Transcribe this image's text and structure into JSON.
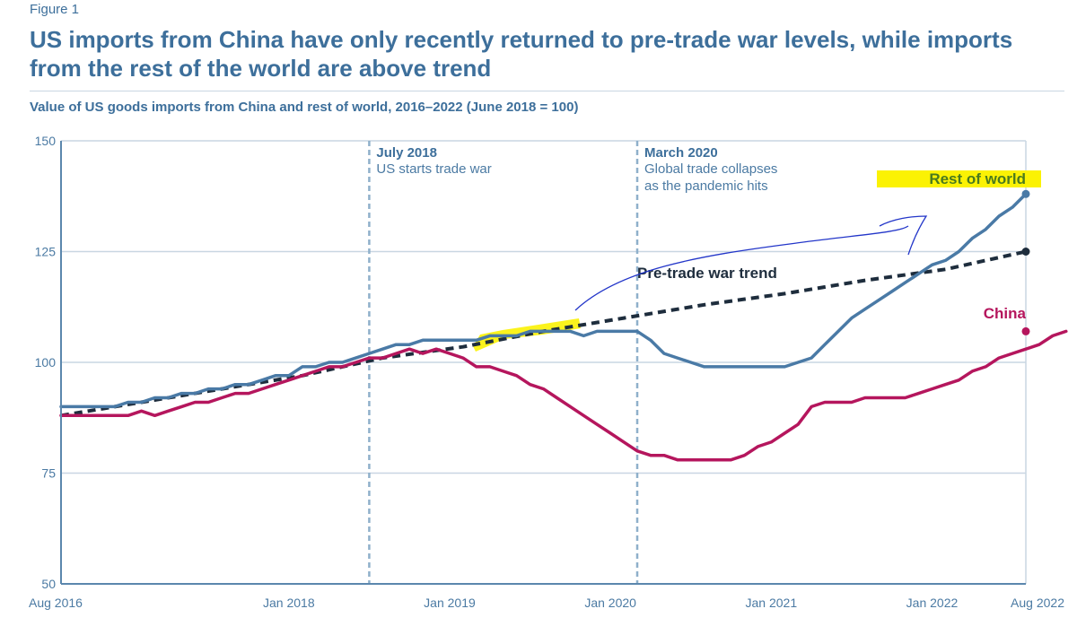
{
  "figure_label": "Figure 1",
  "title": "US imports from China have only recently returned to pre-trade war levels, while imports from the rest of the world are above trend",
  "subtitle": "Value of US goods imports from China and rest of world, 2016–2022 (June 2018 = 100)",
  "colors": {
    "china": "#b5165d",
    "rest_of_world": "#4a7aa6",
    "trend": "#1e2d3d",
    "axis": "#5b87ad",
    "grid": "#c9d6e2",
    "annotation_line": "#8fb0cb",
    "highlight": "#fbf204",
    "pen": "#2336c9"
  },
  "chart_data": {
    "type": "line",
    "title": "Value of US goods imports from China and rest of world, 2016–2022 (June 2018 = 100)",
    "xlabel": "",
    "ylabel": "",
    "xlim": [
      0,
      72
    ],
    "ylim": [
      50,
      150
    ],
    "yticks": [
      50,
      75,
      100,
      125,
      150
    ],
    "xticks": [
      {
        "label": "Aug 2016",
        "m": 0
      },
      {
        "label": "Jan 2018",
        "m": 17
      },
      {
        "label": "Jan 2019",
        "m": 29
      },
      {
        "label": "Jan 2020",
        "m": 41
      },
      {
        "label": "Jan 2021",
        "m": 53
      },
      {
        "label": "Jan 2022",
        "m": 65
      },
      {
        "label": "Aug 2022",
        "m": 72
      }
    ],
    "grid": true,
    "series": [
      {
        "name": "Rest of world",
        "color": "#4a7aa6",
        "style": "solid",
        "end_marker": true,
        "points": [
          [
            0,
            90
          ],
          [
            2,
            90
          ],
          [
            4,
            90
          ],
          [
            5,
            91
          ],
          [
            6,
            91
          ],
          [
            7,
            92
          ],
          [
            8,
            92
          ],
          [
            9,
            93
          ],
          [
            10,
            93
          ],
          [
            11,
            94
          ],
          [
            12,
            94
          ],
          [
            13,
            95
          ],
          [
            14,
            95
          ],
          [
            15,
            96
          ],
          [
            16,
            97
          ],
          [
            17,
            97
          ],
          [
            18,
            99
          ],
          [
            19,
            99
          ],
          [
            20,
            100
          ],
          [
            21,
            100
          ],
          [
            22,
            101
          ],
          [
            23,
            102
          ],
          [
            24,
            103
          ],
          [
            25,
            104
          ],
          [
            26,
            104
          ],
          [
            27,
            105
          ],
          [
            28,
            105
          ],
          [
            29,
            105
          ],
          [
            30,
            105
          ],
          [
            31,
            105
          ],
          [
            32,
            106
          ],
          [
            33,
            106
          ],
          [
            34,
            106
          ],
          [
            35,
            107
          ],
          [
            36,
            107
          ],
          [
            37,
            107
          ],
          [
            38,
            107
          ],
          [
            39,
            106
          ],
          [
            40,
            107
          ],
          [
            41,
            107
          ],
          [
            42,
            107
          ],
          [
            43,
            107
          ],
          [
            44,
            105
          ],
          [
            45,
            102
          ],
          [
            46,
            101
          ],
          [
            47,
            100
          ],
          [
            48,
            99
          ],
          [
            49,
            99
          ],
          [
            50,
            99
          ],
          [
            51,
            99
          ],
          [
            52,
            99
          ],
          [
            53,
            99
          ],
          [
            54,
            99
          ],
          [
            55,
            100
          ],
          [
            56,
            101
          ],
          [
            57,
            104
          ],
          [
            58,
            107
          ],
          [
            59,
            110
          ],
          [
            60,
            112
          ],
          [
            61,
            114
          ],
          [
            62,
            116
          ],
          [
            63,
            118
          ],
          [
            64,
            120
          ],
          [
            65,
            122
          ],
          [
            66,
            123
          ],
          [
            67,
            125
          ],
          [
            68,
            128
          ],
          [
            69,
            130
          ],
          [
            70,
            133
          ],
          [
            71,
            135
          ],
          [
            72,
            138
          ]
        ]
      },
      {
        "name": "Pre-trade war trend",
        "color": "#1e2d3d",
        "style": "dashed",
        "end_marker": true,
        "points": [
          [
            0,
            88
          ],
          [
            6,
            91
          ],
          [
            12,
            94
          ],
          [
            18,
            97
          ],
          [
            24,
            101
          ],
          [
            30,
            103.5
          ],
          [
            36,
            107
          ],
          [
            42,
            110
          ],
          [
            48,
            113
          ],
          [
            54,
            115.5
          ],
          [
            60,
            118.5
          ],
          [
            66,
            121
          ],
          [
            72,
            125
          ]
        ]
      },
      {
        "name": "China",
        "color": "#b5165d",
        "style": "solid",
        "end_marker": true,
        "points": [
          [
            0,
            88
          ],
          [
            2,
            88
          ],
          [
            4,
            88
          ],
          [
            5,
            88
          ],
          [
            6,
            89
          ],
          [
            7,
            88
          ],
          [
            8,
            89
          ],
          [
            9,
            90
          ],
          [
            10,
            91
          ],
          [
            11,
            91
          ],
          [
            12,
            92
          ],
          [
            13,
            93
          ],
          [
            14,
            93
          ],
          [
            15,
            94
          ],
          [
            16,
            95
          ],
          [
            17,
            96
          ],
          [
            18,
            97
          ],
          [
            19,
            98
          ],
          [
            20,
            99
          ],
          [
            21,
            99
          ],
          [
            22,
            100
          ],
          [
            23,
            101
          ],
          [
            24,
            101
          ],
          [
            25,
            102
          ],
          [
            26,
            103
          ],
          [
            27,
            102
          ],
          [
            28,
            103
          ],
          [
            29,
            102
          ],
          [
            30,
            101
          ],
          [
            31,
            99
          ],
          [
            32,
            99
          ],
          [
            33,
            98
          ],
          [
            34,
            97
          ],
          [
            35,
            95
          ],
          [
            36,
            94
          ],
          [
            37,
            92
          ],
          [
            38,
            90
          ],
          [
            39,
            88
          ],
          [
            40,
            86
          ],
          [
            41,
            84
          ],
          [
            42,
            82
          ],
          [
            43,
            80
          ],
          [
            44,
            79
          ],
          [
            45,
            79
          ],
          [
            46,
            78
          ],
          [
            47,
            78
          ],
          [
            48,
            78
          ],
          [
            49,
            78
          ],
          [
            50,
            78
          ],
          [
            51,
            79
          ],
          [
            52,
            81
          ],
          [
            53,
            82
          ],
          [
            54,
            84
          ],
          [
            55,
            86
          ],
          [
            56,
            90
          ],
          [
            57,
            91
          ],
          [
            58,
            91
          ],
          [
            59,
            91
          ],
          [
            60,
            92
          ],
          [
            61,
            92
          ],
          [
            62,
            92
          ],
          [
            63,
            92
          ],
          [
            64,
            93
          ],
          [
            65,
            94
          ],
          [
            66,
            95
          ],
          [
            67,
            96
          ],
          [
            68,
            98
          ],
          [
            69,
            99
          ],
          [
            70,
            101
          ],
          [
            71,
            102
          ],
          [
            72,
            103
          ],
          [
            73,
            104
          ],
          [
            74,
            106
          ],
          [
            75,
            107
          ]
        ]
      }
    ],
    "annotations": [
      {
        "m": 23,
        "title": "July 2018",
        "text": [
          "US starts trade war"
        ]
      },
      {
        "m": 43,
        "title": "March 2020",
        "text": [
          "Global trade collapses",
          "as the pandemic hits"
        ]
      }
    ],
    "series_labels": [
      {
        "text": "Rest of world"
      },
      {
        "text": "China"
      },
      {
        "text": "Pre-trade war trend"
      }
    ]
  }
}
